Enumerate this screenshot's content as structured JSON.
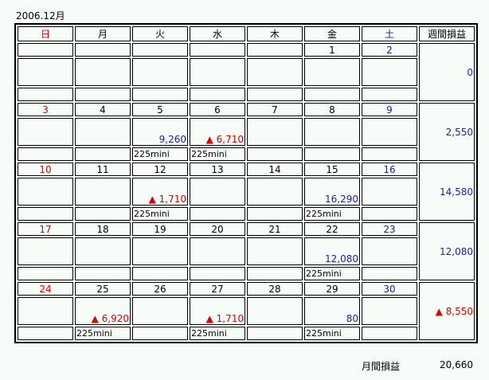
{
  "title": "2006.12月",
  "weekdays": [
    "日",
    "月",
    "火",
    "水",
    "木",
    "金",
    "土"
  ],
  "weekly_header": "週間損益",
  "colors": {
    "sunday": "#e00000",
    "saturday": "#2020a0",
    "profit": "#2020a0",
    "loss": "#e00000"
  },
  "loss_icon": "triangle-up-icon",
  "loss_marker": "▲",
  "weeks": [
    {
      "days": [
        {
          "date": "",
          "value": "",
          "note": ""
        },
        {
          "date": "",
          "value": "",
          "note": ""
        },
        {
          "date": "",
          "value": "",
          "note": ""
        },
        {
          "date": "",
          "value": "",
          "note": ""
        },
        {
          "date": "",
          "value": "",
          "note": ""
        },
        {
          "date": "1",
          "value": "",
          "note": ""
        },
        {
          "date": "2",
          "value": "",
          "note": ""
        }
      ],
      "weekly": {
        "value": "0",
        "loss": false
      }
    },
    {
      "days": [
        {
          "date": "3",
          "value": "",
          "note": ""
        },
        {
          "date": "4",
          "value": "",
          "note": ""
        },
        {
          "date": "5",
          "value": "9,260",
          "loss": false,
          "note": "225mini"
        },
        {
          "date": "6",
          "value": "6,710",
          "loss": true,
          "note": "225mini"
        },
        {
          "date": "7",
          "value": "",
          "note": ""
        },
        {
          "date": "8",
          "value": "",
          "note": ""
        },
        {
          "date": "9",
          "value": "",
          "note": ""
        }
      ],
      "weekly": {
        "value": "2,550",
        "loss": false
      }
    },
    {
      "days": [
        {
          "date": "10",
          "value": "",
          "note": ""
        },
        {
          "date": "11",
          "value": "",
          "note": ""
        },
        {
          "date": "12",
          "value": "1,710",
          "loss": true,
          "note": "225mini"
        },
        {
          "date": "13",
          "value": "",
          "note": ""
        },
        {
          "date": "14",
          "value": "",
          "note": ""
        },
        {
          "date": "15",
          "value": "16,290",
          "loss": false,
          "note": "225mini"
        },
        {
          "date": "16",
          "value": "",
          "note": ""
        }
      ],
      "weekly": {
        "value": "14,580",
        "loss": false
      }
    },
    {
      "days": [
        {
          "date": "17",
          "value": "",
          "note": ""
        },
        {
          "date": "18",
          "value": "",
          "note": ""
        },
        {
          "date": "19",
          "value": "",
          "note": ""
        },
        {
          "date": "20",
          "value": "",
          "note": ""
        },
        {
          "date": "21",
          "value": "",
          "note": ""
        },
        {
          "date": "22",
          "value": "12,080",
          "loss": false,
          "note": "225mini"
        },
        {
          "date": "23",
          "value": "",
          "note": ""
        }
      ],
      "weekly": {
        "value": "12,080",
        "loss": false
      }
    },
    {
      "days": [
        {
          "date": "24",
          "value": "",
          "note": ""
        },
        {
          "date": "25",
          "value": "6,920",
          "loss": true,
          "note": "225mini"
        },
        {
          "date": "26",
          "value": "",
          "note": ""
        },
        {
          "date": "27",
          "value": "1,710",
          "loss": true,
          "note": "225mini"
        },
        {
          "date": "28",
          "value": "",
          "note": ""
        },
        {
          "date": "29",
          "value": "80",
          "loss": false,
          "note": "225mini"
        },
        {
          "date": "30",
          "value": "",
          "note": ""
        }
      ],
      "weekly": {
        "value": "8,550",
        "loss": true
      }
    }
  ],
  "footer": {
    "label": "月間損益",
    "value": "20,660"
  }
}
